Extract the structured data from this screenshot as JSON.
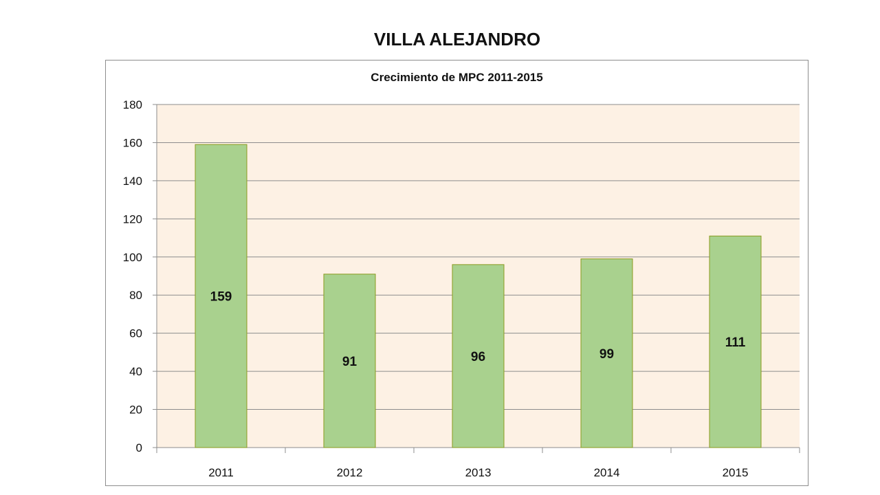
{
  "page": {
    "heading": "VILLA ALEJANDRO"
  },
  "chart_data": {
    "type": "bar",
    "title": "Crecimiento de MPC 2011-2015",
    "xlabel": "",
    "ylabel": "",
    "categories": [
      "2011",
      "2012",
      "2013",
      "2014",
      "2015"
    ],
    "values": [
      159,
      91,
      96,
      99,
      111
    ],
    "data_labels": [
      "159",
      "91",
      "96",
      "99",
      "111"
    ],
    "ylim": [
      0,
      180
    ],
    "yticks": [
      0,
      20,
      40,
      60,
      80,
      100,
      120,
      140,
      160,
      180
    ],
    "grid": true,
    "legend": "none",
    "colors": {
      "bar_fill": "#a9d18e",
      "bar_border": "#8a9a1e",
      "plot_background": "#fdf1e4",
      "gridline": "#8c8c8c"
    }
  }
}
